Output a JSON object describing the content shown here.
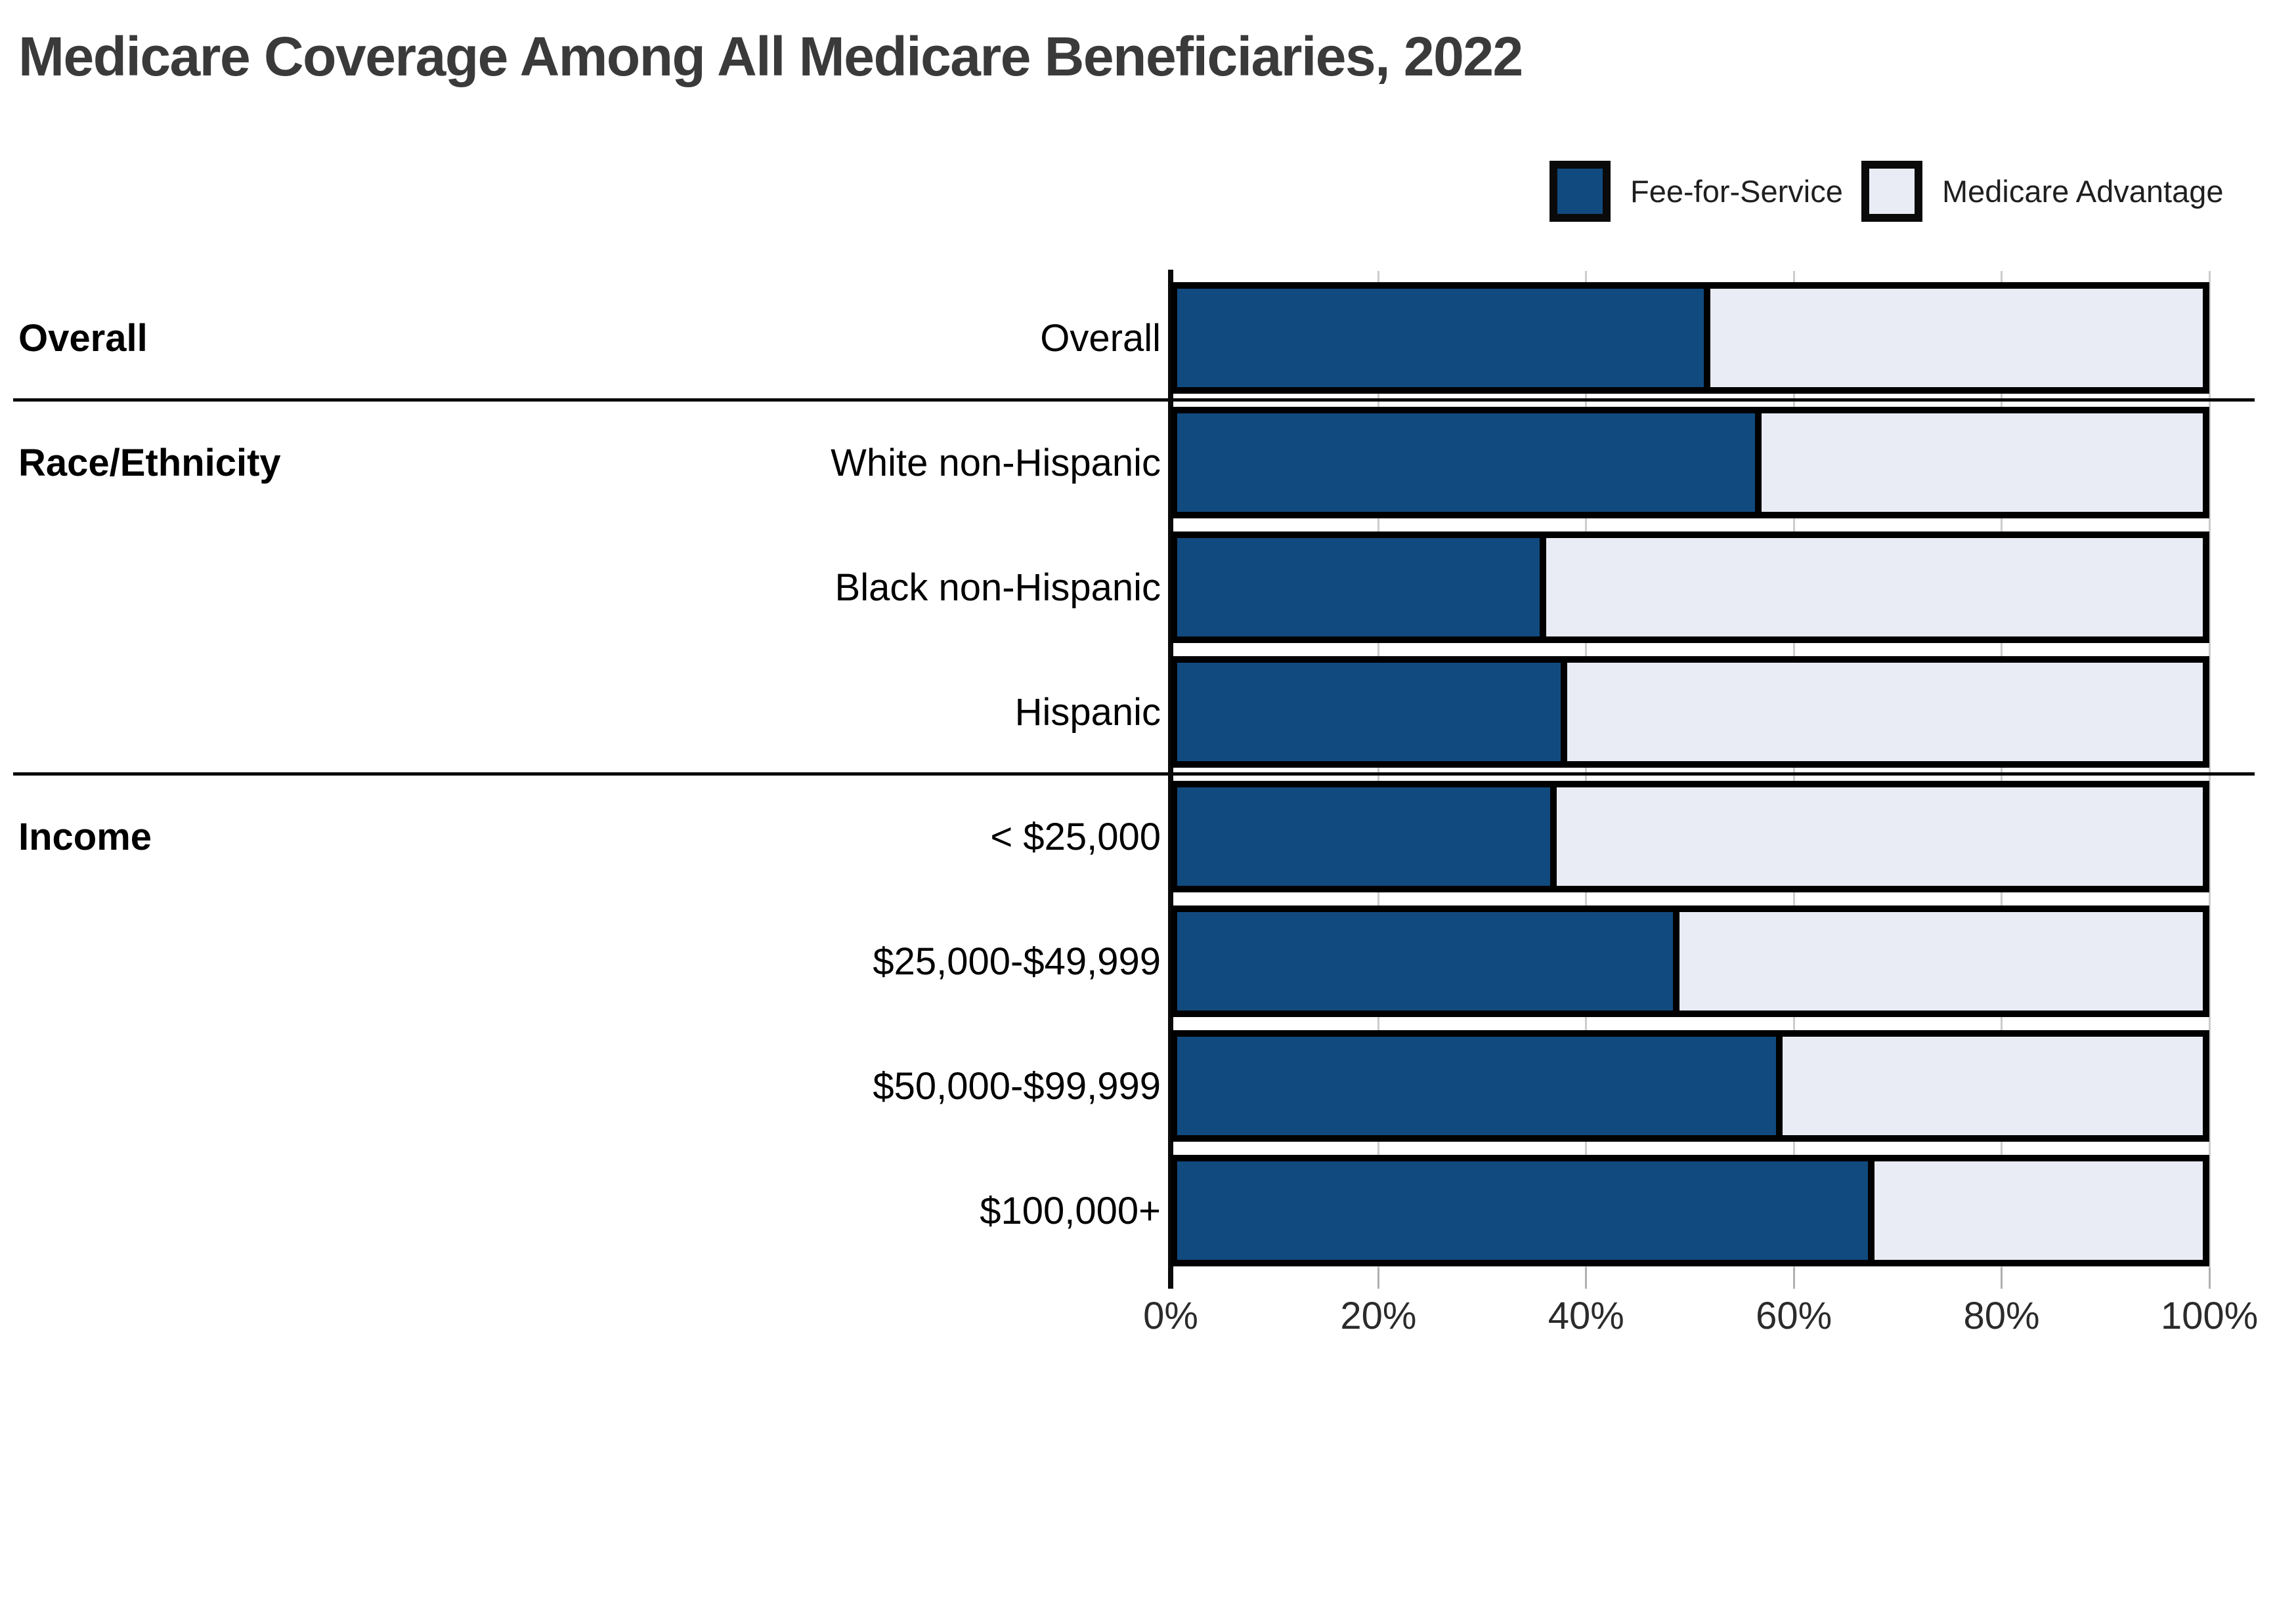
{
  "title": "Medicare Coverage Among All Medicare Beneficiaries, 2022",
  "legend": {
    "items": [
      {
        "label": "Fee-for-Service",
        "color": "#114A7E"
      },
      {
        "label": "Medicare Advantage",
        "color": "#E9ECF4"
      }
    ]
  },
  "sections": [
    {
      "label": "Overall"
    },
    {
      "label": "Race/Ethnicity"
    },
    {
      "label": "Income"
    }
  ],
  "colors": {
    "fee_for_service": "#114A7E",
    "medicare_advantage": "#E9ECF4",
    "bar_border": "#000000",
    "gridline": "#CCCCCC",
    "title_text": "#3A3A3A"
  },
  "chart_data": {
    "type": "bar",
    "orientation": "horizontal",
    "stacked": true,
    "title": "Medicare Coverage Among All Medicare Beneficiaries, 2022",
    "xlabel": "",
    "ylabel": "",
    "xlim": [
      0,
      100
    ],
    "x_ticks": [
      "0%",
      "20%",
      "40%",
      "60%",
      "80%",
      "100%"
    ],
    "grid": true,
    "legend_position": "top-right",
    "categories": [
      "Overall",
      "White non-Hispanic",
      "Black non-Hispanic",
      "Hispanic",
      "< $25,000",
      "$25,000-$49,999",
      "$50,000-$99,999",
      "$100,000+"
    ],
    "groups": [
      {
        "label": "Overall",
        "rows": [
          0
        ]
      },
      {
        "label": "Race/Ethnicity",
        "rows": [
          1,
          2,
          3
        ]
      },
      {
        "label": "Income",
        "rows": [
          4,
          5,
          6,
          7
        ]
      }
    ],
    "series": [
      {
        "name": "Fee-for-Service",
        "color": "#114A7E",
        "values": [
          52,
          57,
          36,
          38,
          37,
          49,
          59,
          68
        ]
      },
      {
        "name": "Medicare Advantage",
        "color": "#E9ECF4",
        "values": [
          48,
          43,
          64,
          62,
          63,
          51,
          41,
          32
        ]
      }
    ]
  }
}
